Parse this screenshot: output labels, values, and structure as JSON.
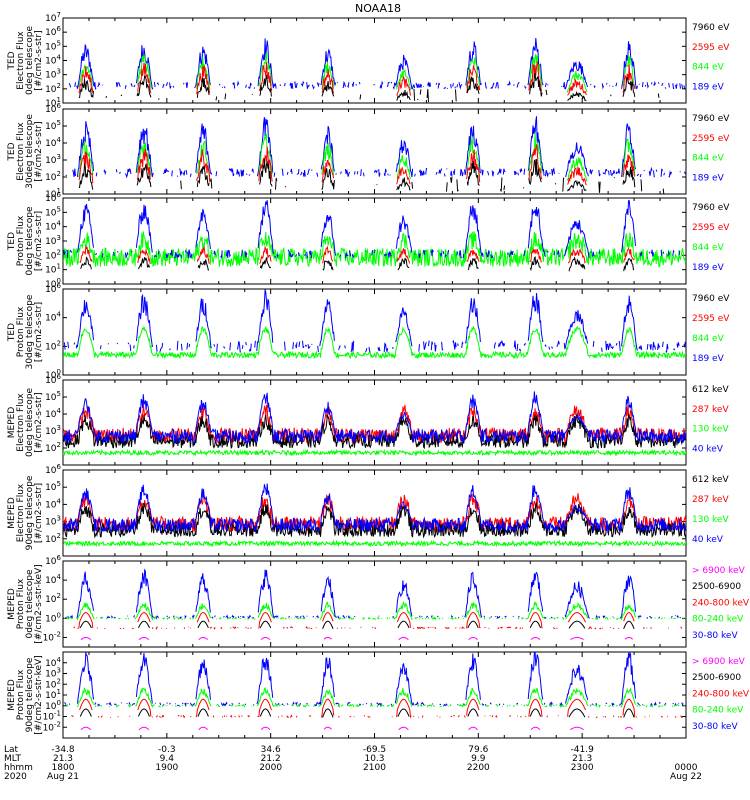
{
  "chart_data": {
    "type": "line",
    "title": "NOAA18",
    "colors": {
      "black": "#000000",
      "red": "#ff0000",
      "green": "#00ff00",
      "blue": "#0000ff",
      "magenta": "#ff00ff"
    },
    "panels": [
      {
        "ylabel": [
          "TED",
          "Electron Flux",
          "0deg telescope",
          "[#/cm2-s-str]"
        ],
        "ylim_exp": [
          1,
          7
        ],
        "tick_exps": [
          1,
          2,
          3,
          4,
          5,
          6,
          7
        ],
        "legend": [
          {
            "text": "7960 eV",
            "color": "black"
          },
          {
            "text": "2595 eV",
            "color": "red"
          },
          {
            "text": "844 eV",
            "color": "green"
          },
          {
            "text": "189 eV",
            "color": "blue"
          }
        ],
        "style": "ted_electron"
      },
      {
        "ylabel": [
          "TED",
          "Electron Flux",
          "30deg telescope",
          "[#/cm2-s-str]"
        ],
        "ylim_exp": [
          1,
          6
        ],
        "tick_exps": [
          1,
          2,
          3,
          4,
          5,
          6
        ],
        "legend": [
          {
            "text": "7960 eV",
            "color": "black"
          },
          {
            "text": "2595 eV",
            "color": "red"
          },
          {
            "text": "844 eV",
            "color": "green"
          },
          {
            "text": "189 eV",
            "color": "blue"
          }
        ],
        "style": "ted_electron"
      },
      {
        "ylabel": [
          "TED",
          "Proton Flux",
          "0deg telescope",
          "[#/cm2-s-str]"
        ],
        "ylim_exp": [
          0,
          6
        ],
        "tick_exps": [
          0,
          1,
          2,
          3,
          4,
          5,
          6
        ],
        "legend": [
          {
            "text": "7960 eV",
            "color": "black"
          },
          {
            "text": "2595 eV",
            "color": "red"
          },
          {
            "text": "844 eV",
            "color": "green"
          },
          {
            "text": "189 eV",
            "color": "blue"
          }
        ],
        "style": "ted_proton0"
      },
      {
        "ylabel": [
          "TED",
          "Proton Flux",
          "30deg telescope",
          "[#/cm2-s-str]"
        ],
        "ylim_exp": [
          0,
          6
        ],
        "tick_exps": [
          0,
          2,
          4,
          6
        ],
        "legend": [
          {
            "text": "7960 eV",
            "color": "black"
          },
          {
            "text": "2595 eV",
            "color": "red"
          },
          {
            "text": "844 eV",
            "color": "green"
          },
          {
            "text": "189 eV",
            "color": "blue"
          }
        ],
        "style": "ted_proton30"
      },
      {
        "ylabel": [
          "MEPED",
          "Electron Flux",
          "0deg telescope",
          "[#/cm2-s-str]"
        ],
        "ylim_exp": [
          1,
          6
        ],
        "tick_exps": [
          2,
          3,
          4,
          5,
          6
        ],
        "legend": [
          {
            "text": "612 keV",
            "color": "black"
          },
          {
            "text": "287 keV",
            "color": "red"
          },
          {
            "text": "130 keV",
            "color": "green"
          },
          {
            "text": "40 keV",
            "color": "blue"
          }
        ],
        "style": "meped_e0"
      },
      {
        "ylabel": [
          "MEPED",
          "Electron Flux",
          "90deg telescope",
          "[#/cm2-s-str]"
        ],
        "ylim_exp": [
          1,
          6
        ],
        "tick_exps": [
          2,
          3,
          4,
          5,
          6
        ],
        "legend": [
          {
            "text": "612 keV",
            "color": "black"
          },
          {
            "text": "287 keV",
            "color": "red"
          },
          {
            "text": "130 keV",
            "color": "green"
          },
          {
            "text": "40 keV",
            "color": "blue"
          }
        ],
        "style": "meped_e90"
      },
      {
        "ylabel": [
          "MEPED",
          "Proton Flux",
          "0deg telescope",
          "[#/cm2-s-str-keV]"
        ],
        "ylim_exp": [
          -3,
          6
        ],
        "tick_exps": [
          -2,
          0,
          2,
          4,
          6
        ],
        "legend": [
          {
            "text": "> 6900 keV",
            "color": "magenta"
          },
          {
            "text": "2500-6900",
            "color": "black"
          },
          {
            "text": "240-800 keV",
            "color": "red"
          },
          {
            "text": "80-240 keV",
            "color": "green"
          },
          {
            "text": "30-80 keV",
            "color": "blue"
          }
        ],
        "style": "meped_p0"
      },
      {
        "ylabel": [
          "MEPED",
          "Proton Flux",
          "90deg telescope",
          "[#/cm2-s-str-keV]"
        ],
        "ylim_exp": [
          -3,
          5
        ],
        "tick_exps": [
          -2,
          -1,
          0,
          1,
          2,
          3,
          4
        ],
        "legend": [
          {
            "text": "> 6900 keV",
            "color": "magenta"
          },
          {
            "text": "2500-6900",
            "color": "black"
          },
          {
            "text": "240-800 keV",
            "color": "red"
          },
          {
            "text": "80-240 keV",
            "color": "green"
          },
          {
            "text": "30-80 keV",
            "color": "blue"
          }
        ],
        "style": "meped_p90"
      }
    ],
    "x_axis": {
      "row_labels": [
        "Lat",
        "MLT",
        "hhmm",
        "2020"
      ],
      "ticks": [
        {
          "lat": "-34.8",
          "mlt": "21.3",
          "hhmm": "1800",
          "date": "Aug 21"
        },
        {
          "lat": "-0.3",
          "mlt": "9.4",
          "hhmm": "1900",
          "date": ""
        },
        {
          "lat": "34.6",
          "mlt": "21.2",
          "hhmm": "2000",
          "date": ""
        },
        {
          "lat": "-69.5",
          "mlt": "10.3",
          "hhmm": "2100",
          "date": ""
        },
        {
          "lat": "79.6",
          "mlt": "9.9",
          "hhmm": "2200",
          "date": ""
        },
        {
          "lat": "-41.9",
          "mlt": "21.3",
          "hhmm": "2300",
          "date": ""
        },
        {
          "lat": "",
          "mlt": "",
          "hhmm": "0000",
          "date": "Aug 22"
        }
      ],
      "time_range_hours": [
        18,
        24
      ]
    },
    "passes": [
      {
        "center_hour": 18.22,
        "width_hours": 0.16,
        "peak_exp": 5.0
      },
      {
        "center_hour": 18.78,
        "width_hours": 0.16,
        "peak_exp": 5.2
      },
      {
        "center_hour": 19.35,
        "width_hours": 0.15,
        "peak_exp": 5.0
      },
      {
        "center_hour": 19.95,
        "width_hours": 0.15,
        "peak_exp": 5.4
      },
      {
        "center_hour": 20.55,
        "width_hours": 0.14,
        "peak_exp": 4.8
      },
      {
        "center_hour": 21.28,
        "width_hours": 0.16,
        "peak_exp": 4.2
      },
      {
        "center_hour": 21.95,
        "width_hours": 0.15,
        "peak_exp": 5.2
      },
      {
        "center_hour": 22.55,
        "width_hours": 0.15,
        "peak_exp": 5.4
      },
      {
        "center_hour": 22.95,
        "width_hours": 0.22,
        "peak_exp": 4.0
      },
      {
        "center_hour": 23.45,
        "width_hours": 0.14,
        "peak_exp": 5.2
      }
    ]
  }
}
